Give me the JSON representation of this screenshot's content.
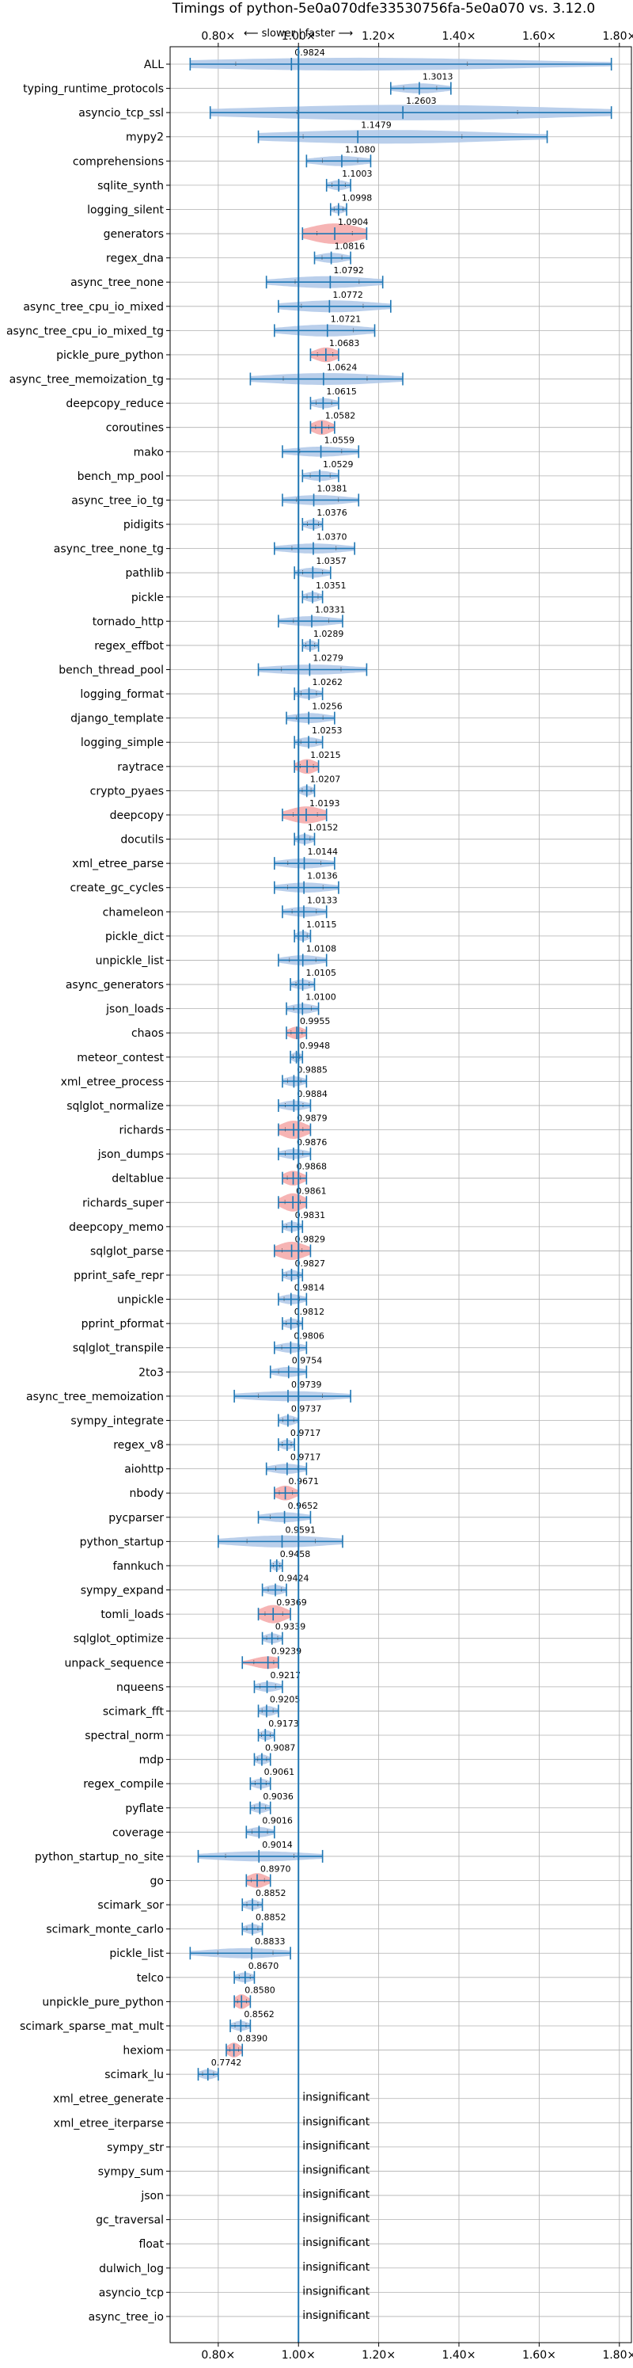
{
  "chart_data": {
    "type": "violin",
    "title": "Timings of python-5e0a070dfe33530756fa-5e0a070 vs. 3.12.0",
    "direction_label": "⟵ slower | faster ⟶",
    "xlim": [
      0.68,
      1.83
    ],
    "x_ticks": [
      0.8,
      1.0,
      1.2,
      1.4,
      1.6,
      1.8
    ],
    "x_tick_labels": [
      "0.80×",
      "1.00×",
      "1.20×",
      "1.40×",
      "1.60×",
      "1.80×"
    ],
    "reference_line": 1.0,
    "insignificant_label": "insignificant",
    "colors": {
      "violin": "#aec7e8",
      "violin_sig": "#f4a7a7",
      "line": "#1f77b4",
      "grid": "#b0b0b0"
    },
    "benchmarks": [
      {
        "name": "ALL",
        "mean": 0.9824,
        "min": 0.73,
        "max": 1.78,
        "width": 0.65,
        "highlight": false
      },
      {
        "name": "typing_runtime_protocols",
        "mean": 1.3013,
        "min": 1.23,
        "max": 1.38,
        "width": 0.5,
        "highlight": false
      },
      {
        "name": "asyncio_tcp_ssl",
        "mean": 1.2603,
        "min": 0.78,
        "max": 1.78,
        "width": 0.8,
        "highlight": false
      },
      {
        "name": "mypy2",
        "mean": 1.1479,
        "min": 0.9,
        "max": 1.62,
        "width": 0.7,
        "highlight": false
      },
      {
        "name": "comprehensions",
        "mean": 1.108,
        "min": 1.02,
        "max": 1.18,
        "width": 0.5,
        "highlight": false
      },
      {
        "name": "sqlite_synth",
        "mean": 1.1003,
        "min": 1.07,
        "max": 1.13,
        "width": 0.5,
        "highlight": false
      },
      {
        "name": "logging_silent",
        "mean": 1.0998,
        "min": 1.08,
        "max": 1.12,
        "width": 0.4,
        "highlight": false
      },
      {
        "name": "generators",
        "mean": 1.0904,
        "min": 1.01,
        "max": 1.17,
        "width": 0.85,
        "highlight": true
      },
      {
        "name": "regex_dna",
        "mean": 1.0816,
        "min": 1.04,
        "max": 1.13,
        "width": 0.5,
        "highlight": false
      },
      {
        "name": "async_tree_none",
        "mean": 1.0792,
        "min": 0.92,
        "max": 1.21,
        "width": 0.6,
        "highlight": false
      },
      {
        "name": "async_tree_cpu_io_mixed",
        "mean": 1.0772,
        "min": 0.95,
        "max": 1.23,
        "width": 0.6,
        "highlight": false
      },
      {
        "name": "async_tree_cpu_io_mixed_tg",
        "mean": 1.0721,
        "min": 0.94,
        "max": 1.19,
        "width": 0.6,
        "highlight": false
      },
      {
        "name": "pickle_pure_python",
        "mean": 1.0683,
        "min": 1.03,
        "max": 1.1,
        "width": 0.6,
        "highlight": true
      },
      {
        "name": "async_tree_memoization_tg",
        "mean": 1.0624,
        "min": 0.88,
        "max": 1.26,
        "width": 0.6,
        "highlight": false
      },
      {
        "name": "deepcopy_reduce",
        "mean": 1.0615,
        "min": 1.03,
        "max": 1.1,
        "width": 0.5,
        "highlight": false
      },
      {
        "name": "coroutines",
        "mean": 1.0582,
        "min": 1.03,
        "max": 1.09,
        "width": 0.6,
        "highlight": true
      },
      {
        "name": "mako",
        "mean": 1.0559,
        "min": 0.96,
        "max": 1.15,
        "width": 0.5,
        "highlight": false
      },
      {
        "name": "bench_mp_pool",
        "mean": 1.0529,
        "min": 1.01,
        "max": 1.1,
        "width": 0.5,
        "highlight": false
      },
      {
        "name": "async_tree_io_tg",
        "mean": 1.0381,
        "min": 0.96,
        "max": 1.15,
        "width": 0.5,
        "highlight": false
      },
      {
        "name": "pidigits",
        "mean": 1.0376,
        "min": 1.01,
        "max": 1.06,
        "width": 0.5,
        "highlight": false
      },
      {
        "name": "async_tree_none_tg",
        "mean": 1.037,
        "min": 0.94,
        "max": 1.14,
        "width": 0.5,
        "highlight": false
      },
      {
        "name": "pathlib",
        "mean": 1.0357,
        "min": 0.99,
        "max": 1.08,
        "width": 0.5,
        "highlight": false
      },
      {
        "name": "pickle",
        "mean": 1.0351,
        "min": 1.01,
        "max": 1.06,
        "width": 0.5,
        "highlight": false
      },
      {
        "name": "tornado_http",
        "mean": 1.0331,
        "min": 0.95,
        "max": 1.11,
        "width": 0.5,
        "highlight": false
      },
      {
        "name": "regex_effbot",
        "mean": 1.0289,
        "min": 1.01,
        "max": 1.05,
        "width": 0.5,
        "highlight": false
      },
      {
        "name": "bench_thread_pool",
        "mean": 1.0279,
        "min": 0.9,
        "max": 1.17,
        "width": 0.5,
        "highlight": false
      },
      {
        "name": "logging_format",
        "mean": 1.0262,
        "min": 0.99,
        "max": 1.06,
        "width": 0.5,
        "highlight": false
      },
      {
        "name": "django_template",
        "mean": 1.0256,
        "min": 0.97,
        "max": 1.09,
        "width": 0.5,
        "highlight": false
      },
      {
        "name": "logging_simple",
        "mean": 1.0253,
        "min": 0.99,
        "max": 1.06,
        "width": 0.5,
        "highlight": false
      },
      {
        "name": "raytrace",
        "mean": 1.0215,
        "min": 0.99,
        "max": 1.05,
        "width": 0.6,
        "highlight": true
      },
      {
        "name": "crypto_pyaes",
        "mean": 1.0207,
        "min": 1.0,
        "max": 1.04,
        "width": 0.5,
        "highlight": false
      },
      {
        "name": "deepcopy",
        "mean": 1.0193,
        "min": 0.96,
        "max": 1.07,
        "width": 0.7,
        "highlight": true
      },
      {
        "name": "docutils",
        "mean": 1.0152,
        "min": 0.99,
        "max": 1.04,
        "width": 0.5,
        "highlight": false
      },
      {
        "name": "xml_etree_parse",
        "mean": 1.0144,
        "min": 0.94,
        "max": 1.09,
        "width": 0.5,
        "highlight": false
      },
      {
        "name": "create_gc_cycles",
        "mean": 1.0136,
        "min": 0.94,
        "max": 1.1,
        "width": 0.5,
        "highlight": false
      },
      {
        "name": "chameleon",
        "mean": 1.0133,
        "min": 0.96,
        "max": 1.07,
        "width": 0.5,
        "highlight": false
      },
      {
        "name": "pickle_dict",
        "mean": 1.0115,
        "min": 0.99,
        "max": 1.03,
        "width": 0.5,
        "highlight": false
      },
      {
        "name": "unpickle_list",
        "mean": 1.0108,
        "min": 0.95,
        "max": 1.07,
        "width": 0.5,
        "highlight": false
      },
      {
        "name": "async_generators",
        "mean": 1.0105,
        "min": 0.98,
        "max": 1.04,
        "width": 0.5,
        "highlight": false
      },
      {
        "name": "json_loads",
        "mean": 1.01,
        "min": 0.97,
        "max": 1.05,
        "width": 0.5,
        "highlight": false
      },
      {
        "name": "chaos",
        "mean": 0.9955,
        "min": 0.97,
        "max": 1.02,
        "width": 0.5,
        "highlight": true
      },
      {
        "name": "meteor_contest",
        "mean": 0.9948,
        "min": 0.98,
        "max": 1.01,
        "width": 0.5,
        "highlight": false
      },
      {
        "name": "xml_etree_process",
        "mean": 0.9885,
        "min": 0.96,
        "max": 1.02,
        "width": 0.5,
        "highlight": false
      },
      {
        "name": "sqlglot_normalize",
        "mean": 0.9884,
        "min": 0.95,
        "max": 1.03,
        "width": 0.5,
        "highlight": false
      },
      {
        "name": "richards",
        "mean": 0.9879,
        "min": 0.95,
        "max": 1.03,
        "width": 0.75,
        "highlight": true
      },
      {
        "name": "json_dumps",
        "mean": 0.9876,
        "min": 0.95,
        "max": 1.03,
        "width": 0.5,
        "highlight": false
      },
      {
        "name": "deltablue",
        "mean": 0.9868,
        "min": 0.96,
        "max": 1.02,
        "width": 0.6,
        "highlight": true
      },
      {
        "name": "richards_super",
        "mean": 0.9861,
        "min": 0.95,
        "max": 1.02,
        "width": 0.75,
        "highlight": true
      },
      {
        "name": "deepcopy_memo",
        "mean": 0.9831,
        "min": 0.96,
        "max": 1.01,
        "width": 0.5,
        "highlight": false
      },
      {
        "name": "sqlglot_parse",
        "mean": 0.9829,
        "min": 0.94,
        "max": 1.03,
        "width": 0.75,
        "highlight": true
      },
      {
        "name": "pprint_safe_repr",
        "mean": 0.9827,
        "min": 0.96,
        "max": 1.01,
        "width": 0.5,
        "highlight": false
      },
      {
        "name": "unpickle",
        "mean": 0.9814,
        "min": 0.95,
        "max": 1.02,
        "width": 0.5,
        "highlight": false
      },
      {
        "name": "pprint_pformat",
        "mean": 0.9812,
        "min": 0.96,
        "max": 1.01,
        "width": 0.5,
        "highlight": false
      },
      {
        "name": "sqlglot_transpile",
        "mean": 0.9806,
        "min": 0.94,
        "max": 1.02,
        "width": 0.5,
        "highlight": false
      },
      {
        "name": "2to3",
        "mean": 0.9754,
        "min": 0.93,
        "max": 1.02,
        "width": 0.5,
        "highlight": false
      },
      {
        "name": "async_tree_memoization",
        "mean": 0.9739,
        "min": 0.84,
        "max": 1.13,
        "width": 0.5,
        "highlight": false
      },
      {
        "name": "sympy_integrate",
        "mean": 0.9737,
        "min": 0.95,
        "max": 1.0,
        "width": 0.5,
        "highlight": false
      },
      {
        "name": "regex_v8",
        "mean": 0.9717,
        "min": 0.95,
        "max": 0.99,
        "width": 0.5,
        "highlight": false
      },
      {
        "name": "aiohttp",
        "mean": 0.9717,
        "min": 0.92,
        "max": 1.02,
        "width": 0.5,
        "highlight": false
      },
      {
        "name": "nbody",
        "mean": 0.9671,
        "min": 0.94,
        "max": 1.0,
        "width": 0.6,
        "highlight": true
      },
      {
        "name": "pycparser",
        "mean": 0.9652,
        "min": 0.9,
        "max": 1.03,
        "width": 0.5,
        "highlight": false
      },
      {
        "name": "python_startup",
        "mean": 0.9591,
        "min": 0.8,
        "max": 1.11,
        "width": 0.6,
        "highlight": false
      },
      {
        "name": "fannkuch",
        "mean": 0.9458,
        "min": 0.93,
        "max": 0.96,
        "width": 0.5,
        "highlight": false
      },
      {
        "name": "sympy_expand",
        "mean": 0.9424,
        "min": 0.91,
        "max": 0.97,
        "width": 0.5,
        "highlight": false
      },
      {
        "name": "tomli_loads",
        "mean": 0.9369,
        "min": 0.9,
        "max": 0.98,
        "width": 0.75,
        "highlight": true
      },
      {
        "name": "sqlglot_optimize",
        "mean": 0.9339,
        "min": 0.91,
        "max": 0.96,
        "width": 0.5,
        "highlight": false
      },
      {
        "name": "unpack_sequence",
        "mean": 0.9239,
        "min": 0.86,
        "max": 0.95,
        "width": 0.5,
        "highlight": true
      },
      {
        "name": "nqueens",
        "mean": 0.9217,
        "min": 0.89,
        "max": 0.96,
        "width": 0.5,
        "highlight": false
      },
      {
        "name": "scimark_fft",
        "mean": 0.9205,
        "min": 0.9,
        "max": 0.95,
        "width": 0.5,
        "highlight": false
      },
      {
        "name": "spectral_norm",
        "mean": 0.9173,
        "min": 0.9,
        "max": 0.94,
        "width": 0.5,
        "highlight": false
      },
      {
        "name": "mdp",
        "mean": 0.9087,
        "min": 0.89,
        "max": 0.93,
        "width": 0.5,
        "highlight": false
      },
      {
        "name": "regex_compile",
        "mean": 0.9061,
        "min": 0.88,
        "max": 0.93,
        "width": 0.5,
        "highlight": false
      },
      {
        "name": "pyflate",
        "mean": 0.9036,
        "min": 0.88,
        "max": 0.93,
        "width": 0.5,
        "highlight": false
      },
      {
        "name": "coverage",
        "mean": 0.9016,
        "min": 0.87,
        "max": 0.94,
        "width": 0.5,
        "highlight": false
      },
      {
        "name": "python_startup_no_site",
        "mean": 0.9014,
        "min": 0.75,
        "max": 1.06,
        "width": 0.5,
        "highlight": false
      },
      {
        "name": "go",
        "mean": 0.897,
        "min": 0.87,
        "max": 0.93,
        "width": 0.6,
        "highlight": true
      },
      {
        "name": "scimark_sor",
        "mean": 0.8852,
        "min": 0.86,
        "max": 0.91,
        "width": 0.5,
        "highlight": false
      },
      {
        "name": "scimark_monte_carlo",
        "mean": 0.8852,
        "min": 0.86,
        "max": 0.91,
        "width": 0.5,
        "highlight": false
      },
      {
        "name": "pickle_list",
        "mean": 0.8833,
        "min": 0.73,
        "max": 0.98,
        "width": 0.5,
        "highlight": false
      },
      {
        "name": "telco",
        "mean": 0.867,
        "min": 0.84,
        "max": 0.89,
        "width": 0.5,
        "highlight": false
      },
      {
        "name": "unpickle_pure_python",
        "mean": 0.858,
        "min": 0.84,
        "max": 0.88,
        "width": 0.6,
        "highlight": true
      },
      {
        "name": "scimark_sparse_mat_mult",
        "mean": 0.8562,
        "min": 0.83,
        "max": 0.88,
        "width": 0.5,
        "highlight": false
      },
      {
        "name": "hexiom",
        "mean": 0.839,
        "min": 0.82,
        "max": 0.86,
        "width": 0.6,
        "highlight": true
      },
      {
        "name": "scimark_lu",
        "mean": 0.7742,
        "min": 0.75,
        "max": 0.8,
        "width": 0.5,
        "highlight": false
      },
      {
        "name": "xml_etree_generate",
        "mean": null,
        "insignificant": true
      },
      {
        "name": "xml_etree_iterparse",
        "mean": null,
        "insignificant": true
      },
      {
        "name": "sympy_str",
        "mean": null,
        "insignificant": true
      },
      {
        "name": "sympy_sum",
        "mean": null,
        "insignificant": true
      },
      {
        "name": "json",
        "mean": null,
        "insignificant": true
      },
      {
        "name": "gc_traversal",
        "mean": null,
        "insignificant": true
      },
      {
        "name": "float",
        "mean": null,
        "insignificant": true
      },
      {
        "name": "dulwich_log",
        "mean": null,
        "insignificant": true
      },
      {
        "name": "asyncio_tcp",
        "mean": null,
        "insignificant": true
      },
      {
        "name": "async_tree_io",
        "mean": null,
        "insignificant": true
      }
    ]
  }
}
